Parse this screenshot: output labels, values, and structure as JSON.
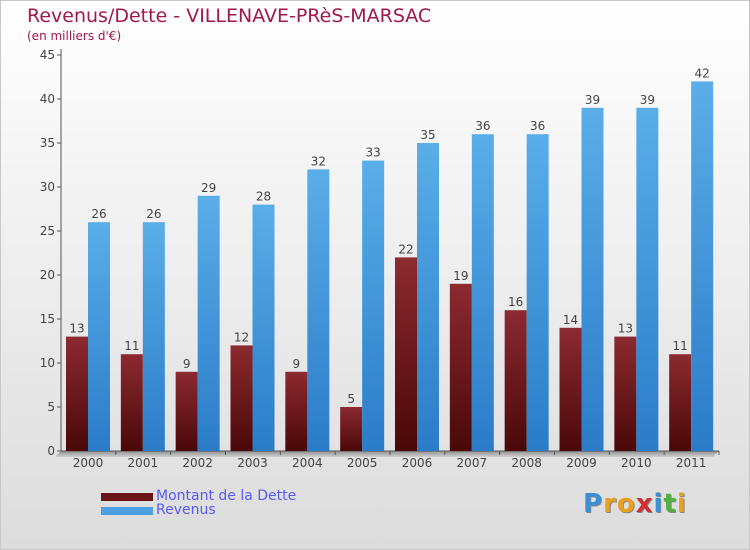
{
  "chart_data": {
    "type": "bar",
    "title": "Revenus/Dette - VILLENAVE-PRèS-MARSAC",
    "subtitle": "(en milliers d'€)",
    "categories": [
      "2000",
      "2001",
      "2002",
      "2003",
      "2004",
      "2005",
      "2006",
      "2007",
      "2008",
      "2009",
      "2010",
      "2011"
    ],
    "series": [
      {
        "name": "Montant de la Dette",
        "color": "#6b1418",
        "values": [
          13,
          11,
          9,
          12,
          9,
          5,
          22,
          19,
          16,
          14,
          13,
          11
        ]
      },
      {
        "name": "Revenus",
        "color": "#4d9fe0",
        "values": [
          26,
          26,
          29,
          28,
          32,
          33,
          35,
          36,
          36,
          39,
          39,
          42
        ]
      }
    ],
    "ylim": [
      0,
      45
    ],
    "yticks": [
      0,
      5,
      10,
      15,
      20,
      25,
      30,
      35,
      40,
      45
    ],
    "xlabel": "",
    "ylabel": "",
    "grid": false,
    "legend_position": "bottom-left"
  },
  "brand": {
    "letters": [
      "P",
      "r",
      "o",
      "x",
      "i",
      "t",
      "i"
    ],
    "colors": [
      "#3a8fd8",
      "#e8a020",
      "#e8a020",
      "#d03030",
      "#3a8fd8",
      "#50b040",
      "#e8a020"
    ]
  }
}
